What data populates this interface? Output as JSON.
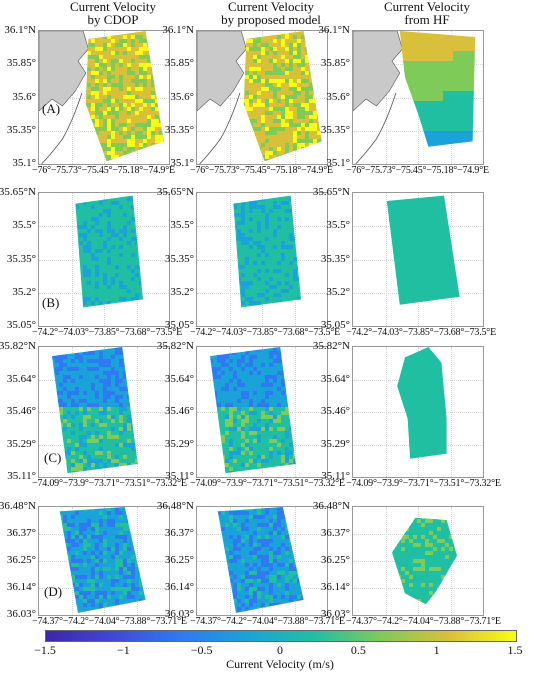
{
  "column_titles": [
    "Current Velocity\nby CDOP",
    "Current Velocity\nby proposed model",
    "Current Velocity\nfrom HF"
  ],
  "rows": [
    {
      "label": "(A)",
      "y_ticks": [
        "36.1°N",
        "35.85°",
        "35.6°",
        "35.35°",
        "35.1°"
      ],
      "x_tick_line": "−76°−75.73°−75.45°−75.18°−74.9°E",
      "x_tick_line_last": "−76°−75.73°−75.45°−75.18°−74.9°E"
    },
    {
      "label": "(B)",
      "y_ticks": [
        "35.65°N",
        "35.5°",
        "35.35°",
        "35.2°",
        "35.05°"
      ],
      "x_tick_line": "−74.2°−74.03°−73.85°−73.68°−73.5°E",
      "x_tick_line_last": "−74.2°−74.03°−73.85°−73.68°−73.5°E"
    },
    {
      "label": "(C)",
      "y_ticks": [
        "35.82°N",
        "35.64°",
        "35.46°",
        "35.29°",
        "35.11°"
      ],
      "x_tick_line": "−74.09°−73.9°−73.71°−73.51°−73.32°E",
      "x_tick_line_last": "−74.09°−73.9°−73.71°−73.51°−73.32°E"
    },
    {
      "label": "(D)",
      "y_ticks": [
        "36.48°N",
        "36.37°",
        "36.25°",
        "36.14°",
        "36.03°"
      ],
      "x_tick_line": "−74.37°−74.2°−74.04°−73.88°−73.71°E",
      "x_tick_line_last": "−74.37°−74.2°−74.04°−73.88°−73.71°E"
    }
  ],
  "colorbar": {
    "ticks": [
      "−1.5",
      "−1",
      "−0.5",
      "0",
      "0.5",
      "1",
      "1.5"
    ],
    "label": "Current Velocity (m/s)",
    "range": [
      -1.5,
      1.5
    ],
    "colormap": "parula",
    "colors": [
      "#3e26a8",
      "#4148d6",
      "#2f7af2",
      "#1aa3d9",
      "#21bfa2",
      "#7ecb5a",
      "#d9c03a",
      "#f9fb15"
    ]
  },
  "land_color": "#c9c9c9",
  "coast_color": "#555555"
}
